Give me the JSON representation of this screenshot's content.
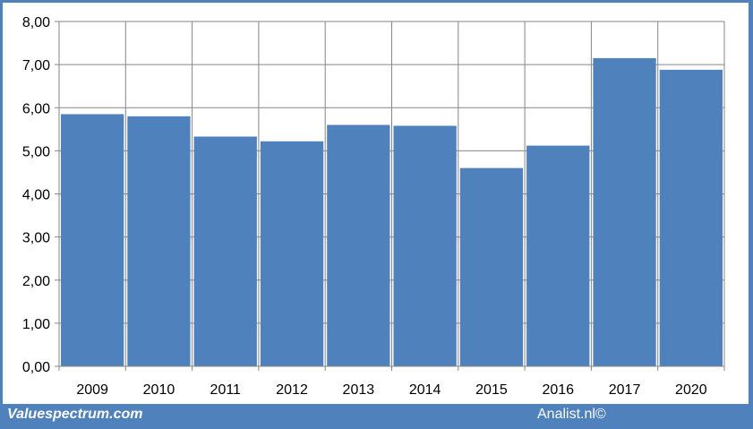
{
  "chart_data": {
    "type": "bar",
    "categories": [
      "2009",
      "2010",
      "2011",
      "2012",
      "2013",
      "2014",
      "2015",
      "2016",
      "2017",
      "2020"
    ],
    "values": [
      5.85,
      5.8,
      5.33,
      5.22,
      5.6,
      5.58,
      4.6,
      5.12,
      7.15,
      6.88
    ],
    "ylim": [
      0,
      8
    ],
    "yticks": [
      "0,00",
      "1,00",
      "2,00",
      "3,00",
      "4,00",
      "5,00",
      "6,00",
      "7,00",
      "8,00"
    ],
    "grid": true,
    "bar_color": "#4f81bd",
    "grid_color": "#868686",
    "title": "",
    "xlabel": "",
    "ylabel": ""
  },
  "footer": {
    "site": "Valuespectrum.com",
    "credit": "Analist.nl©"
  },
  "colors": {
    "border": "#4f81bd",
    "background": "#ffffff"
  }
}
